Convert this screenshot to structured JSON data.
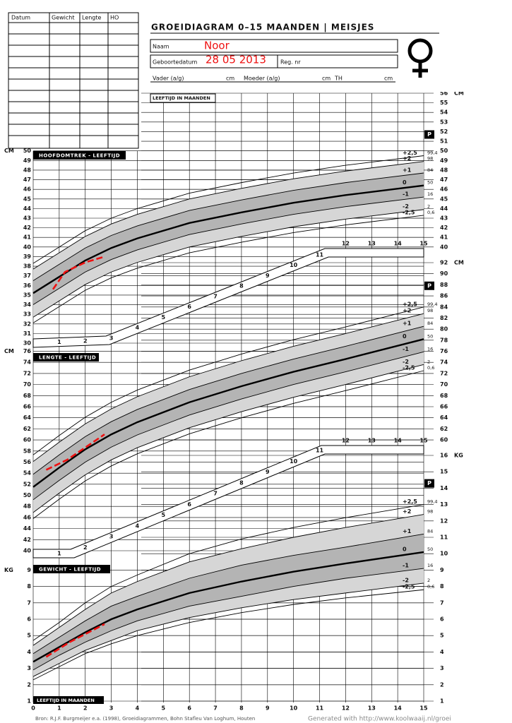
{
  "header": {
    "title": "GROEIDIAGRAM 0–15 MAANDEN | MEISJES",
    "name_label": "Naam",
    "name": "Noor",
    "birth_label": "Geboortedatum",
    "birth": "28 05 2013",
    "reg_label": "Reg. nr",
    "father_label": "Vader (a/g)",
    "mother_label": "Moeder (a/g)",
    "cm": "cm",
    "th_label": "TH"
  },
  "table": {
    "columns": [
      "Datum",
      "Gewicht",
      "Lengte",
      "HO"
    ]
  },
  "chart_data": [
    {
      "type": "line",
      "title": "HOOFDOMTREK - LEEFTIJD",
      "x_label": "LEEFTIJD IN MAANDEN",
      "y_unit": "CM",
      "percentile_header": "P",
      "xlim": [
        0,
        15
      ],
      "ylim": [
        30,
        56
      ],
      "xticks": [
        5,
        6,
        7,
        8,
        9,
        10,
        11,
        12,
        13,
        14,
        15
      ],
      "yticks": [
        30,
        31,
        32,
        33,
        34,
        35,
        36,
        37,
        38,
        39,
        40,
        41,
        42,
        43,
        44,
        45,
        46,
        47,
        48,
        49,
        50
      ],
      "yticks_right": [
        40,
        41,
        42,
        43,
        44,
        45,
        46,
        47,
        48,
        49,
        50,
        51,
        52,
        53,
        54,
        55,
        56
      ],
      "x": [
        0,
        1,
        2,
        3,
        4,
        6,
        8,
        10,
        12,
        15
      ],
      "series": [
        {
          "name": "+2,5",
          "percentile": "99,4",
          "color": "#000",
          "values": [
            38.3,
            40.0,
            41.7,
            43.0,
            44.0,
            45.6,
            46.7,
            47.7,
            48.5,
            49.5
          ]
        },
        {
          "name": "+2",
          "percentile": "98",
          "color": "#000",
          "values": [
            37.7,
            39.4,
            41.1,
            42.4,
            43.4,
            45.0,
            46.1,
            47.1,
            47.9,
            48.9
          ]
        },
        {
          "name": "+1",
          "percentile": "84",
          "color": "#000",
          "values": [
            36.5,
            38.2,
            39.9,
            41.2,
            42.2,
            43.8,
            44.9,
            45.9,
            46.7,
            47.7
          ]
        },
        {
          "name": "0",
          "percentile": "50",
          "color": "#000",
          "values": [
            35.2,
            36.9,
            38.6,
            39.9,
            40.9,
            42.5,
            43.6,
            44.6,
            45.4,
            46.4
          ]
        },
        {
          "name": "-1",
          "percentile": "16",
          "color": "#000",
          "values": [
            34.0,
            35.7,
            37.4,
            38.7,
            39.7,
            41.3,
            42.4,
            43.4,
            44.2,
            45.2
          ]
        },
        {
          "name": "-2",
          "percentile": "2",
          "color": "#000",
          "values": [
            32.7,
            34.4,
            36.1,
            37.4,
            38.4,
            40.0,
            41.1,
            42.1,
            42.9,
            43.9
          ]
        },
        {
          "name": "-2,5",
          "percentile": "0,6",
          "color": "#000",
          "values": [
            32.1,
            33.8,
            35.5,
            36.8,
            37.8,
            39.4,
            40.5,
            41.5,
            42.3,
            43.3
          ]
        }
      ],
      "measurements": {
        "color": "#e11",
        "x": [
          0.76,
          1.22,
          2.0,
          2.74
        ],
        "values": [
          35.6,
          37.4,
          38.4,
          39.0
        ]
      }
    },
    {
      "type": "line",
      "title": "LENGTE - LEEFTIJD",
      "y_unit": "CM",
      "percentile_header": "P",
      "xlim": [
        0,
        15
      ],
      "ylim": [
        40,
        92
      ],
      "xticks": [
        1,
        2,
        3,
        4,
        5,
        6,
        7,
        8,
        9,
        10,
        11,
        12,
        13,
        14,
        15
      ],
      "yticks": [
        40,
        42,
        44,
        46,
        48,
        50,
        52,
        54,
        56,
        58,
        60,
        62,
        64,
        66,
        68,
        70,
        72,
        74,
        76
      ],
      "yticks_right": [
        60,
        62,
        64,
        66,
        68,
        70,
        72,
        74,
        76,
        78,
        80,
        82,
        84,
        86,
        88,
        90,
        92
      ],
      "x": [
        0,
        1,
        2,
        3,
        4,
        6,
        8,
        10,
        12,
        15
      ],
      "series": [
        {
          "name": "+2,5",
          "percentile": "99,4",
          "color": "#000",
          "values": [
            57.3,
            60.8,
            64.1,
            66.8,
            69.0,
            72.6,
            75.5,
            78.1,
            80.4,
            84.0
          ]
        },
        {
          "name": "+2",
          "percentile": "98",
          "color": "#000",
          "values": [
            56.1,
            59.6,
            62.9,
            65.6,
            67.8,
            71.4,
            74.3,
            76.9,
            79.2,
            82.8
          ]
        },
        {
          "name": "+1",
          "percentile": "84",
          "color": "#000",
          "values": [
            53.8,
            57.3,
            60.6,
            63.3,
            65.5,
            69.1,
            72.0,
            74.6,
            76.9,
            80.5
          ]
        },
        {
          "name": "0",
          "percentile": "50",
          "color": "#000",
          "values": [
            51.5,
            55.0,
            58.3,
            61.0,
            63.2,
            66.8,
            69.7,
            72.3,
            74.6,
            78.2
          ]
        },
        {
          "name": "-1",
          "percentile": "16",
          "color": "#000",
          "values": [
            49.2,
            52.7,
            56.0,
            58.7,
            60.9,
            64.5,
            67.4,
            70.0,
            72.3,
            75.9
          ]
        },
        {
          "name": "-2",
          "percentile": "2",
          "color": "#000",
          "values": [
            46.9,
            50.4,
            53.7,
            56.4,
            58.6,
            62.2,
            65.1,
            67.7,
            70.0,
            73.6
          ]
        },
        {
          "name": "-2,5",
          "percentile": "0,6",
          "color": "#000",
          "values": [
            45.8,
            49.3,
            52.6,
            55.3,
            57.5,
            61.1,
            64.0,
            66.6,
            68.9,
            72.5
          ]
        }
      ],
      "measurements": {
        "color": "#e11",
        "x": [
          0.5,
          1.3,
          2.74
        ],
        "values": [
          54.6,
          56.4,
          61.0
        ]
      }
    },
    {
      "type": "line",
      "title": "GEWICHT - LEEFTIJD",
      "x_label": "LEEFTIJD IN MAANDEN",
      "y_unit": "KG",
      "percentile_header": "P",
      "xlim": [
        0,
        15
      ],
      "ylim": [
        1,
        16
      ],
      "xticks": [
        0,
        1,
        2,
        3,
        4,
        5,
        6,
        7,
        8,
        9,
        10,
        11,
        12,
        13,
        14,
        15
      ],
      "yticks": [
        1,
        2,
        3,
        4,
        5,
        6,
        7,
        8,
        9
      ],
      "yticks_right": [
        1,
        2,
        3,
        4,
        5,
        6,
        7,
        8,
        9,
        10,
        11,
        12,
        13,
        14,
        15,
        16
      ],
      "x": [
        0,
        1,
        2,
        3,
        4,
        6,
        8,
        10,
        12,
        15
      ],
      "series": [
        {
          "name": "+2,5",
          "percentile": "99,4",
          "color": "#000",
          "values": [
            4.7,
            5.8,
            7.0,
            8.0,
            8.7,
            10.0,
            10.9,
            11.6,
            12.2,
            13.0
          ]
        },
        {
          "name": "+2",
          "percentile": "98",
          "color": "#000",
          "values": [
            4.4,
            5.5,
            6.6,
            7.6,
            8.3,
            9.5,
            10.3,
            11.0,
            11.6,
            12.4
          ]
        },
        {
          "name": "+1",
          "percentile": "84",
          "color": "#000",
          "values": [
            3.9,
            4.9,
            5.9,
            6.8,
            7.4,
            8.5,
            9.3,
            9.9,
            10.4,
            11.2
          ]
        },
        {
          "name": "0",
          "percentile": "50",
          "color": "#000",
          "values": [
            3.4,
            4.3,
            5.2,
            6.0,
            6.6,
            7.6,
            8.3,
            8.9,
            9.4,
            10.1
          ]
        },
        {
          "name": "-1",
          "percentile": "16",
          "color": "#000",
          "values": [
            2.9,
            3.8,
            4.6,
            5.3,
            5.9,
            6.8,
            7.4,
            8.0,
            8.5,
            9.1
          ]
        },
        {
          "name": "-2",
          "percentile": "2",
          "color": "#000",
          "values": [
            2.5,
            3.3,
            4.1,
            4.7,
            5.3,
            6.1,
            6.7,
            7.2,
            7.6,
            8.2
          ]
        },
        {
          "name": "-2,5",
          "percentile": "0,6",
          "color": "#000",
          "values": [
            2.3,
            3.1,
            3.9,
            4.5,
            5.0,
            5.8,
            6.4,
            6.9,
            7.3,
            7.8
          ]
        }
      ],
      "measurements": {
        "color": "#e11",
        "x": [
          0.5,
          1.4,
          2.74
        ],
        "values": [
          3.7,
          4.6,
          5.7
        ]
      }
    }
  ],
  "footer": {
    "source": "Bron: R.J.F. Burgmeijer e.a. (1998), Groeidiagrammen, Bohn Stafleu Van Loghum, Houten",
    "generated": "Generated with http://www.koolwaaij.nl/groei"
  }
}
